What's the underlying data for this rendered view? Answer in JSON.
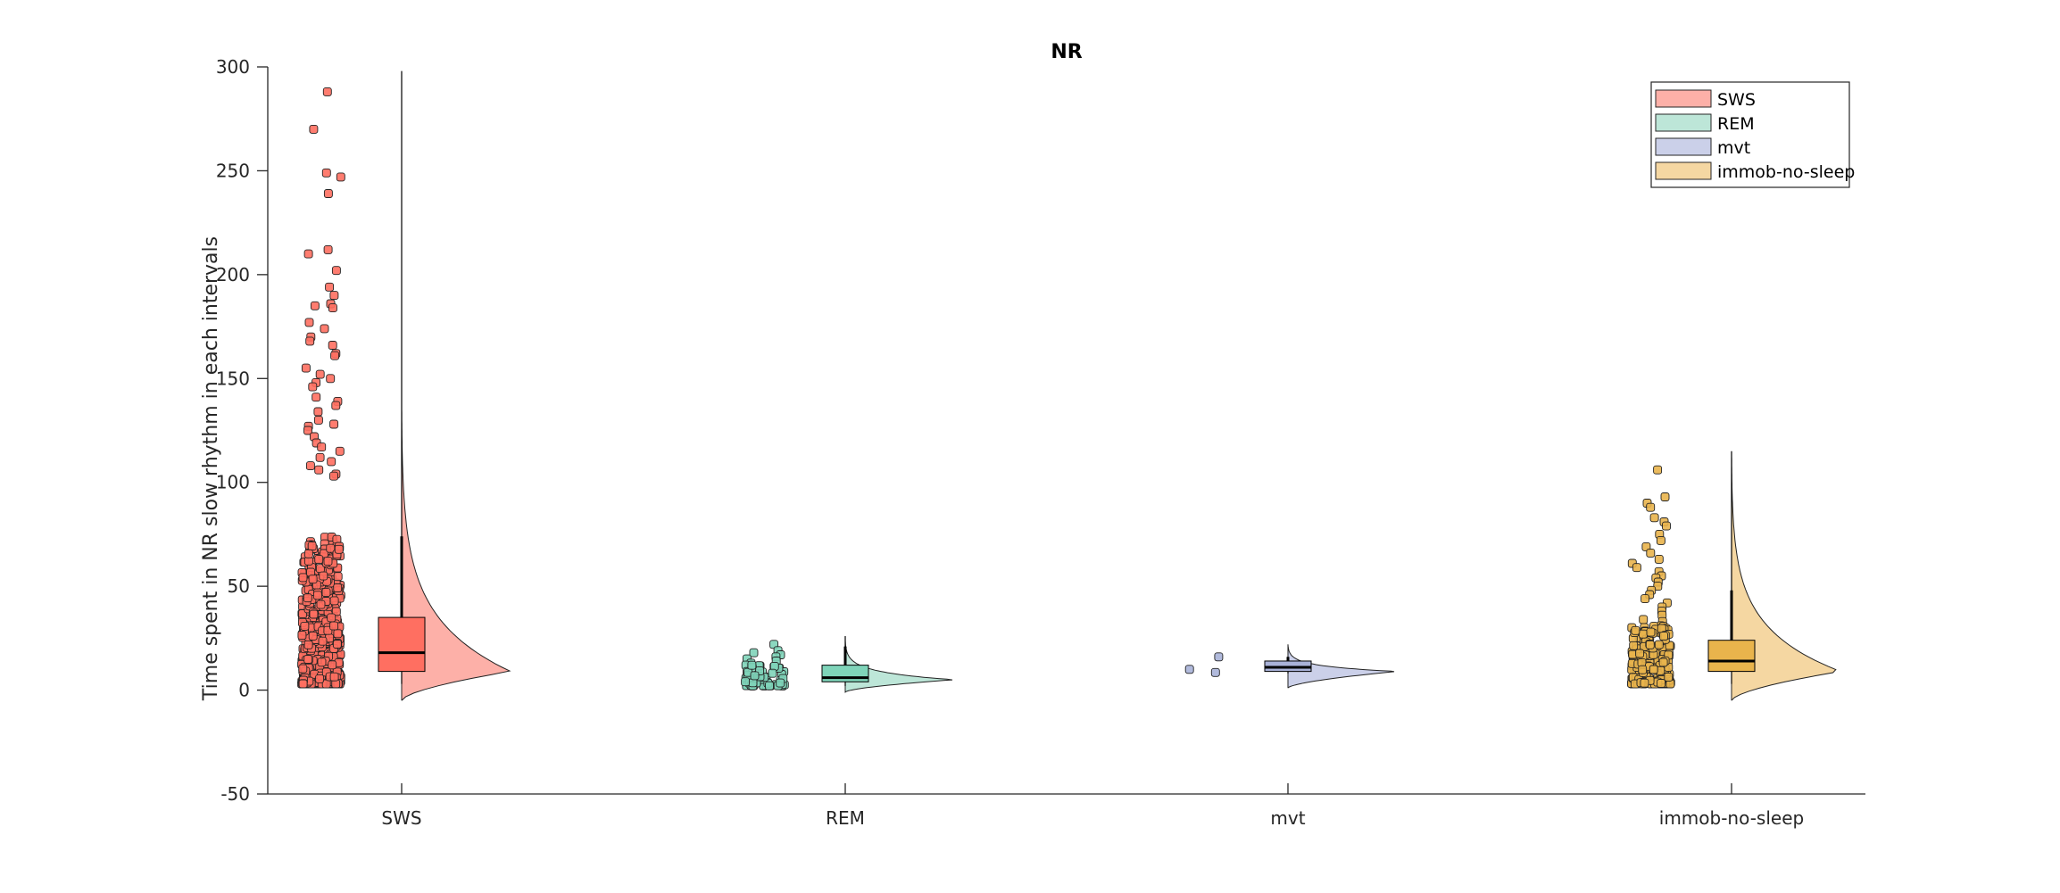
{
  "chart_data": {
    "type": "raincloud",
    "title": "NR",
    "xlabel": "",
    "ylabel": "Time spent in NR slow rhythm in each intervals",
    "ylim": [
      -50,
      300
    ],
    "yticks": [
      -50,
      0,
      50,
      100,
      150,
      200,
      250,
      300
    ],
    "grid": false,
    "legend_position": "top-right",
    "categories": [
      "SWS",
      "REM",
      "mvt",
      "immob-no-sleep"
    ],
    "series": [
      {
        "name": "SWS",
        "color": "#FF6F61",
        "light_color": "#FDB0A8",
        "box": {
          "q1": 9,
          "median": 18,
          "q3": 35,
          "whisker_low": 3,
          "whisker_high": 74,
          "line_top": 298
        },
        "density_range": [
          -5,
          137
        ],
        "density_mode": 9,
        "points": [
          288,
          270,
          249,
          247,
          239,
          212,
          210,
          202,
          194,
          190,
          186,
          185,
          184,
          177,
          174,
          170,
          168,
          166,
          162,
          161,
          155,
          152,
          150,
          148,
          146,
          141,
          139,
          137,
          134,
          130,
          128,
          127,
          125,
          122,
          119,
          117,
          115,
          112,
          110,
          108,
          106,
          104,
          103
        ]
      },
      {
        "name": "REM",
        "color": "#7FD4B9",
        "light_color": "#BDE6D8",
        "box": {
          "q1": 4,
          "median": 6,
          "q3": 12,
          "whisker_low": 2,
          "whisker_high": 21,
          "line_top": 26
        },
        "density_range": [
          -1,
          24
        ],
        "density_mode": 5,
        "points": [
          22,
          19,
          18,
          17,
          16,
          15,
          14,
          13,
          12
        ]
      },
      {
        "name": "mvt",
        "color": "#A9B2D8",
        "light_color": "#CBD0E9",
        "box": {
          "q1": 9,
          "median": 11,
          "q3": 14,
          "whisker_low": 8,
          "whisker_high": 16,
          "line_top": 16
        },
        "density_range": [
          1,
          22
        ],
        "density_mode": 9,
        "points": [
          16,
          10,
          8.5
        ]
      },
      {
        "name": "immob-no-sleep",
        "color": "#E9B44C",
        "light_color": "#F5D7A2",
        "box": {
          "q1": 9,
          "median": 14,
          "q3": 24,
          "whisker_low": 3,
          "whisker_high": 48,
          "line_top": 115
        },
        "density_range": [
          -5,
          114
        ],
        "density_mode": 9,
        "points": [
          106,
          93,
          90,
          88,
          83,
          81,
          79,
          75,
          72,
          69,
          66,
          63,
          61,
          59,
          57,
          55,
          54,
          52,
          50,
          48,
          46,
          44,
          42,
          40,
          38,
          36,
          34,
          33,
          31
        ]
      }
    ]
  }
}
